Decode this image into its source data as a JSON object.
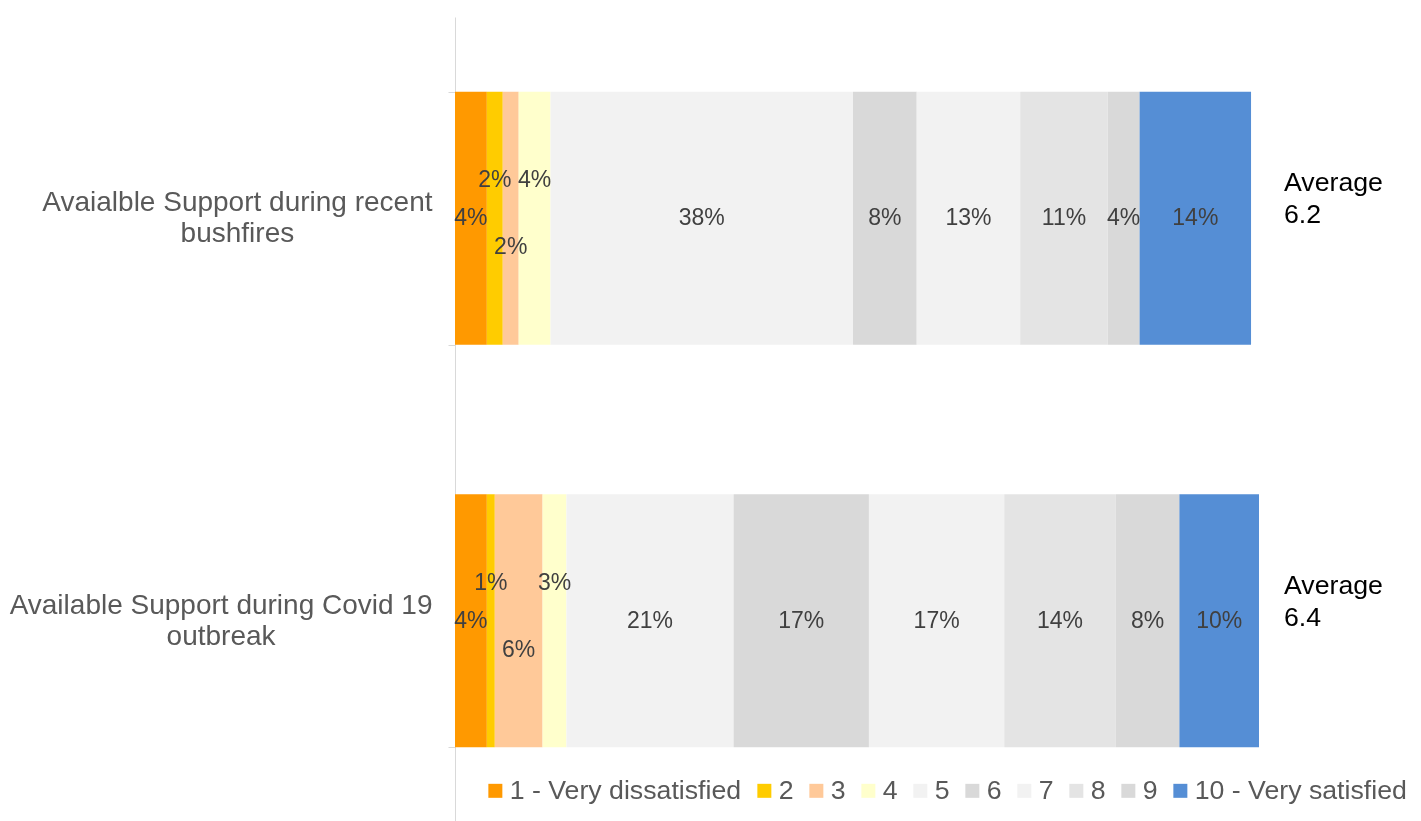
{
  "chart_data": {
    "type": "bar",
    "orientation": "horizontal",
    "stacked": true,
    "categories": [
      "Avaialble Support during recent bushfires",
      "Available Support during Covid 19 outbreak"
    ],
    "series": [
      {
        "name": "1 - Very dissatisfied",
        "color": "#ff9900",
        "values": [
          4,
          4
        ],
        "value_labels": [
          "4%",
          "4%"
        ]
      },
      {
        "name": "2",
        "color": "#ffcc00",
        "values": [
          2,
          1
        ],
        "value_labels": [
          "2%",
          "1%"
        ]
      },
      {
        "name": "3",
        "color": "#ffc999",
        "values": [
          2,
          6
        ],
        "value_labels": [
          "2%",
          "6%"
        ]
      },
      {
        "name": "4",
        "color": "#ffffcc",
        "values": [
          4,
          3
        ],
        "value_labels": [
          "4%",
          "3%"
        ]
      },
      {
        "name": "5",
        "color": "#f2f2f2",
        "values": [
          38,
          21
        ],
        "value_labels": [
          "38%",
          "21%"
        ]
      },
      {
        "name": "6",
        "color": "#d9d9d9",
        "values": [
          8,
          17
        ],
        "value_labels": [
          "8%",
          "17%"
        ]
      },
      {
        "name": "7",
        "color": "#f2f2f2",
        "values": [
          13,
          17
        ],
        "value_labels": [
          "13%",
          "17%"
        ]
      },
      {
        "name": "8",
        "color": "#e4e4e4",
        "values": [
          11,
          14
        ],
        "value_labels": [
          "11%",
          "14%"
        ]
      },
      {
        "name": "9",
        "color": "#d9d9d9",
        "values": [
          4,
          8
        ],
        "value_labels": [
          "4%",
          "8%"
        ]
      },
      {
        "name": "10 - Very satisfied",
        "color": "#558ed5",
        "values": [
          14,
          10
        ],
        "value_labels": [
          "14%",
          "10%"
        ]
      }
    ],
    "legend": "bottom",
    "annotations": [
      "Average 6.2",
      "Average 6.4"
    ]
  }
}
